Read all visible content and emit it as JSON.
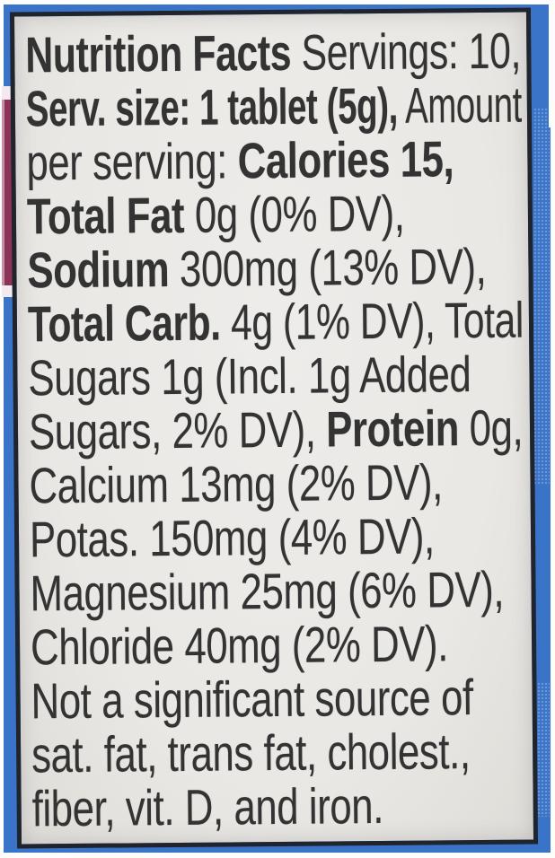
{
  "nutrition_label": {
    "lines": [
      {
        "segments": [
          {
            "text": "Nutrition Facts",
            "bold": true
          },
          {
            "text": " Servings: 10,",
            "bold": false
          }
        ]
      },
      {
        "segments": [
          {
            "text": "Serv. size: 1 tablet (5g),",
            "bold": true
          },
          {
            "text": " Amount",
            "bold": false
          }
        ]
      },
      {
        "segments": [
          {
            "text": "per serving: ",
            "bold": false
          },
          {
            "text": "Calories 15,",
            "bold": true
          }
        ]
      },
      {
        "segments": [
          {
            "text": "Total Fat",
            "bold": true
          },
          {
            "text": " 0g (0% DV),",
            "bold": false
          }
        ]
      },
      {
        "segments": [
          {
            "text": "Sodium",
            "bold": true
          },
          {
            "text": " 300mg (13% DV),",
            "bold": false
          }
        ]
      },
      {
        "segments": [
          {
            "text": "Total Carb.",
            "bold": true
          },
          {
            "text": " 4g (1% DV), Total",
            "bold": false
          }
        ]
      },
      {
        "segments": [
          {
            "text": "Sugars 1g (Incl. 1g Added",
            "bold": false
          }
        ]
      },
      {
        "segments": [
          {
            "text": "Sugars, 2% DV), ",
            "bold": false
          },
          {
            "text": "Protein",
            "bold": true
          },
          {
            "text": " 0g,",
            "bold": false
          }
        ]
      },
      {
        "segments": [
          {
            "text": "Calcium 13mg (2% DV),",
            "bold": false
          }
        ]
      },
      {
        "segments": [
          {
            "text": "Potas. 150mg (4% DV),",
            "bold": false
          }
        ]
      },
      {
        "segments": [
          {
            "text": "Magnesium 25mg (6% DV),",
            "bold": false
          }
        ]
      },
      {
        "segments": [
          {
            "text": "Chloride 40mg (2% DV).",
            "bold": false
          }
        ]
      },
      {
        "segments": [
          {
            "text": "Not a significant source of",
            "bold": false
          }
        ]
      },
      {
        "segments": [
          {
            "text": "sat. fat, trans fat, cholest.,",
            "bold": false
          }
        ]
      },
      {
        "segments": [
          {
            "text": "fiber, vit. D, and iron.",
            "bold": false
          }
        ]
      }
    ],
    "facts": {
      "servings": "10",
      "serving_size": "1 tablet (5g)",
      "calories": "15",
      "nutrients": [
        {
          "name": "Total Fat",
          "amount": "0g",
          "dv": "0% DV"
        },
        {
          "name": "Sodium",
          "amount": "300mg",
          "dv": "13% DV"
        },
        {
          "name": "Total Carb.",
          "amount": "4g",
          "dv": "1% DV"
        },
        {
          "name": "Total Sugars",
          "amount": "1g",
          "dv": ""
        },
        {
          "name": "Added Sugars",
          "amount": "1g",
          "dv": "2% DV"
        },
        {
          "name": "Protein",
          "amount": "0g",
          "dv": ""
        },
        {
          "name": "Calcium",
          "amount": "13mg",
          "dv": "2% DV"
        },
        {
          "name": "Potas.",
          "amount": "150mg",
          "dv": "4% DV"
        },
        {
          "name": "Magnesium",
          "amount": "25mg",
          "dv": "6% DV"
        },
        {
          "name": "Chloride",
          "amount": "40mg",
          "dv": "2% DV"
        }
      ],
      "not_significant_note": "Not a significant source of sat. fat, trans fat, cholest., fiber, vit. D, and iron."
    }
  },
  "colors": {
    "package_blue": "#3a74c8",
    "package_blue_light": "#6f9bd8",
    "stripe_maroon": "#8c3457",
    "label_background": "#eae8e4",
    "label_border": "#20242c",
    "text_color": "#333333"
  }
}
